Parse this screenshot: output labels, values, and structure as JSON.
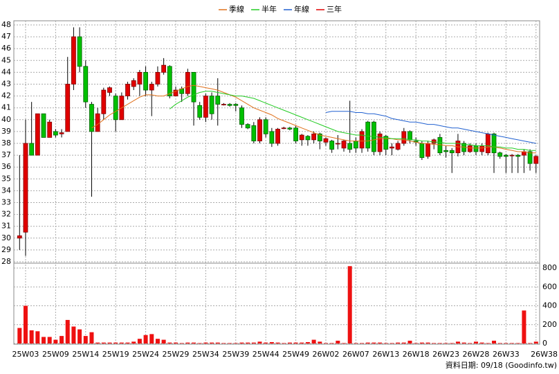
{
  "chart_data": {
    "type": "candlestick",
    "categories": [
      null,
      "25W03",
      null,
      null,
      null,
      null,
      "25W09",
      null,
      null,
      null,
      null,
      "25W14",
      null,
      null,
      null,
      null,
      "25W19",
      null,
      null,
      null,
      null,
      "25W24",
      null,
      null,
      null,
      null,
      "25W29",
      null,
      null,
      null,
      null,
      "25W34",
      null,
      null,
      null,
      null,
      "25W39",
      null,
      null,
      null,
      null,
      "25W44",
      null,
      null,
      null,
      null,
      "25W49",
      null,
      null,
      null,
      null,
      "26W02",
      null,
      null,
      null,
      null,
      "26W07",
      null,
      null,
      null,
      null,
      "26W13",
      null,
      null,
      null,
      null,
      "26W18",
      null,
      null,
      null,
      null,
      "26W23",
      null,
      null,
      null,
      null,
      "26W28",
      null,
      null,
      null,
      null,
      "26W33",
      null,
      null,
      null,
      null,
      "26W38"
    ],
    "open": [
      30,
      30.5,
      38,
      37,
      40.5,
      38.5,
      39,
      38.8,
      39,
      43,
      47,
      44.5,
      41.3,
      39,
      40.5,
      42.3,
      42,
      40,
      42,
      42.8,
      43,
      44,
      42.5,
      43,
      44,
      44.5,
      42,
      42.6,
      42.2,
      44,
      41.2,
      40.2,
      42,
      42,
      41.3,
      41.3,
      41.3,
      41,
      39.6,
      39.5,
      38.2,
      40,
      39,
      38,
      39.3,
      39.3,
      39.3,
      38.3,
      38.6,
      38.3,
      38.8,
      38.1,
      38.2,
      38,
      37.6,
      38,
      38.2,
      37.6,
      39.8,
      39.8,
      37.3,
      38.6,
      37.6,
      37.5,
      38,
      39,
      38.2,
      38,
      36.9,
      38,
      38.5,
      37.4,
      37.4,
      37.2,
      38,
      37.3,
      37.8,
      37.3,
      37.2,
      38.8,
      37.2,
      37,
      37,
      37,
      37,
      37.3,
      36.3
    ],
    "high": [
      37,
      40,
      41.5,
      40.5,
      40.5,
      40,
      39.2,
      39.2,
      45.3,
      47.8,
      47.8,
      45,
      41.5,
      41,
      42.7,
      42.8,
      42.2,
      42.3,
      43.2,
      43.5,
      44.2,
      44.5,
      43.2,
      44.5,
      45.2,
      44.6,
      42.8,
      42.8,
      44.3,
      44,
      41.5,
      42.2,
      42.3,
      43.5,
      41.4,
      41.4,
      41.4,
      41.2,
      39.7,
      39.8,
      40.2,
      40.2,
      39.3,
      39.3,
      39.4,
      39.4,
      39.5,
      38.8,
      38.7,
      39,
      38.9,
      38.5,
      38.3,
      38.7,
      38.3,
      41.6,
      38.5,
      39.2,
      39.9,
      39.9,
      39,
      38.7,
      38,
      38.2,
      39.3,
      39.1,
      38.5,
      38.2,
      38.2,
      38.4,
      38.8,
      37.8,
      37.6,
      38.8,
      38.2,
      38,
      38,
      38,
      38.9,
      38.9,
      37.3,
      37.1,
      37.1,
      37.1,
      37.5,
      37.5,
      37
    ],
    "low": [
      29,
      28.5,
      37,
      37,
      38.5,
      38.5,
      38.5,
      38.5,
      39,
      42.5,
      44,
      41,
      33.5,
      39,
      40,
      42,
      39,
      40,
      41.7,
      42.5,
      42,
      42,
      40.3,
      42.8,
      43.8,
      41.8,
      42,
      41.5,
      42,
      39.5,
      40,
      39.8,
      40,
      39.5,
      41.2,
      41.1,
      40.7,
      39.3,
      39.2,
      38,
      38,
      38.5,
      37.7,
      37.8,
      39.2,
      39.1,
      38,
      37.8,
      37.8,
      38,
      37.5,
      37.8,
      37.2,
      37.5,
      37.3,
      37.2,
      37.2,
      37.2,
      37.3,
      37,
      37,
      37,
      37,
      37.4,
      37.8,
      38,
      37.8,
      36.6,
      36.7,
      37.5,
      37,
      36.8,
      35.5,
      36.9,
      37,
      37.2,
      37,
      37,
      37,
      35.5,
      36.7,
      35.5,
      35.5,
      35.5,
      35.5,
      35.7,
      35.5
    ],
    "close": [
      30.2,
      38,
      37,
      40.5,
      38.5,
      39.8,
      38.7,
      38.9,
      43,
      47,
      44.5,
      41.5,
      39,
      40.5,
      42.5,
      42.7,
      40,
      42,
      43,
      43.3,
      44,
      42.5,
      43,
      44,
      44.6,
      42,
      42.5,
      42.2,
      44,
      41.5,
      40.2,
      42,
      40.5,
      41.3,
      41.3,
      41.2,
      41.2,
      39.6,
      39.3,
      38.2,
      40,
      38.8,
      38,
      39.2,
      39.3,
      39.2,
      38.2,
      38.7,
      38.3,
      38.8,
      38.2,
      38.4,
      37.5,
      38,
      38.2,
      37.5,
      37.6,
      39,
      37.6,
      37.3,
      38.8,
      37.5,
      37.7,
      38,
      39,
      38.3,
      38.1,
      36.8,
      38,
      38.3,
      37.2,
      37.3,
      37.2,
      38.2,
      37.3,
      37.8,
      37.3,
      37.8,
      38.8,
      37.2,
      36.9,
      36.9,
      37,
      36.9,
      37.3,
      36.3,
      36.9
    ],
    "up_color": "#e00000",
    "down_color": "#00c000",
    "ylim": [
      28,
      48
    ],
    "yticks": [
      28,
      29,
      30,
      31,
      32,
      33,
      34,
      35,
      36,
      37,
      38,
      39,
      40,
      41,
      42,
      43,
      44,
      45,
      46,
      47,
      48
    ],
    "series": [
      {
        "name": "季線",
        "color": "#e0701a",
        "values": [
          null,
          null,
          null,
          null,
          null,
          null,
          null,
          null,
          null,
          null,
          null,
          null,
          39.3,
          39.6,
          40,
          40.4,
          40.7,
          41,
          41.3,
          41.6,
          41.9,
          42.1,
          42.1,
          42,
          42,
          42.2,
          42.4,
          42.6,
          42.8,
          42.9,
          42.8,
          42.7,
          42.6,
          42.5,
          42.3,
          42.1,
          41.9,
          41.6,
          41.3,
          41,
          40.8,
          40.6,
          40.4,
          40.1,
          39.9,
          39.7,
          39.5,
          39.3,
          39.1,
          38.9,
          38.7,
          38.6,
          38.5,
          38.4,
          38.3,
          38.2,
          38.2,
          38.2,
          38.2,
          38.3,
          38.4,
          38.4,
          38.4,
          38.3,
          38.3,
          38.2,
          38.1,
          38,
          38,
          37.9,
          37.9,
          37.8,
          37.8,
          37.7,
          37.7,
          37.6,
          37.6,
          37.6,
          37.7,
          37.7,
          37.6,
          37.5,
          37.4,
          37.3,
          37.3,
          37.2,
          37.2
        ]
      },
      {
        "name": "半年",
        "color": "#22cc22",
        "values": [
          null,
          null,
          null,
          null,
          null,
          null,
          null,
          null,
          null,
          null,
          null,
          null,
          null,
          null,
          null,
          null,
          null,
          null,
          null,
          null,
          null,
          null,
          null,
          null,
          null,
          40.9,
          41.3,
          41.6,
          41.9,
          42.1,
          42.3,
          42.4,
          42.4,
          42.3,
          42.2,
          42.1,
          42,
          42,
          41.9,
          41.8,
          41.6,
          41.4,
          41.2,
          41,
          40.8,
          40.6,
          40.4,
          40.2,
          40,
          39.8,
          39.6,
          39.4,
          39.2,
          39,
          38.9,
          38.8,
          38.7,
          38.7,
          38.6,
          38.6,
          38.5,
          38.5,
          38.4,
          38.4,
          38.4,
          38.3,
          38.3,
          38.2,
          38.2,
          38.1,
          38.1,
          38,
          38,
          38,
          37.9,
          37.9,
          37.8,
          37.8,
          37.8,
          37.7,
          37.7,
          37.6,
          37.6,
          37.5,
          37.5,
          37.4,
          37.4
        ]
      },
      {
        "name": "年線",
        "color": "#2060d0",
        "values": [
          null,
          null,
          null,
          null,
          null,
          null,
          null,
          null,
          null,
          null,
          null,
          null,
          null,
          null,
          null,
          null,
          null,
          null,
          null,
          null,
          null,
          null,
          null,
          null,
          null,
          null,
          null,
          null,
          null,
          null,
          null,
          null,
          null,
          null,
          null,
          null,
          null,
          null,
          null,
          null,
          null,
          null,
          null,
          null,
          null,
          null,
          null,
          null,
          null,
          null,
          null,
          40.6,
          40.7,
          40.7,
          40.7,
          40.7,
          40.6,
          40.6,
          40.5,
          40.5,
          40.4,
          40.3,
          40.1,
          40,
          39.9,
          39.8,
          39.8,
          39.7,
          39.6,
          39.6,
          39.5,
          39.4,
          39.3,
          39.3,
          39.2,
          39.1,
          39,
          38.9,
          38.8,
          38.7,
          38.6,
          38.5,
          38.4,
          38.3,
          38.2,
          38.1,
          38
        ]
      },
      {
        "name": "三年",
        "color": "#e00000"
      }
    ],
    "volume": {
      "color": "#ee1111",
      "ylim": [
        0,
        800
      ],
      "yticks": [
        0,
        200,
        400,
        600,
        800
      ],
      "values": [
        165,
        400,
        140,
        130,
        70,
        70,
        40,
        80,
        250,
        180,
        150,
        80,
        120,
        10,
        10,
        10,
        10,
        10,
        10,
        20,
        50,
        90,
        100,
        50,
        40,
        10,
        10,
        5,
        10,
        10,
        5,
        10,
        10,
        10,
        5,
        5,
        5,
        10,
        10,
        10,
        20,
        10,
        15,
        10,
        5,
        10,
        10,
        10,
        15,
        40,
        20,
        5,
        5,
        30,
        5,
        820,
        5,
        5,
        10,
        10,
        10,
        5,
        5,
        10,
        10,
        30,
        5,
        10,
        10,
        5,
        5,
        5,
        5,
        20,
        10,
        5,
        20,
        10,
        5,
        30,
        5,
        5,
        5,
        5,
        350,
        5,
        20
      ]
    },
    "footer": "資料日期: 09/18 (Goodinfo.tw)"
  }
}
